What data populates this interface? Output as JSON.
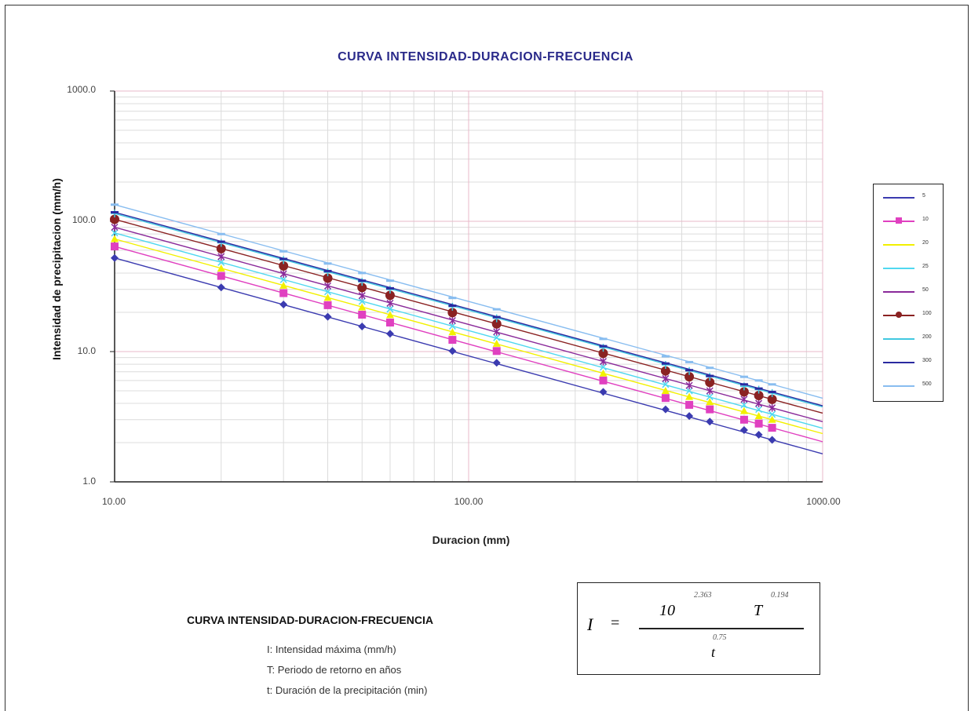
{
  "page": {
    "formula_section_title": "CURVA INTENSIDAD-DURACION-FRECUENCIA",
    "notes": [
      "I: Intensidad máxima (mm/h)",
      "T: Periodo de retorno en años",
      "t: Duración de la precipitación (min)"
    ],
    "formula": {
      "lhs": "I",
      "equals": "=",
      "base": "10",
      "base_exponent": "2.363",
      "t_var": "T",
      "t_exponent": "0.194",
      "denominator": "t",
      "denominator_exponent": "0.75"
    }
  },
  "chart_data": {
    "type": "line",
    "title": "CURVA INTENSIDAD-DURACION-FRECUENCIA",
    "xlabel": "Duracion (mm)",
    "ylabel": "Intensidad de precipitacion (mm/h)",
    "x_scale": "log",
    "y_scale": "log",
    "xlim": [
      10,
      1000
    ],
    "ylim": [
      1,
      1000
    ],
    "x_tick_labels": [
      "10.00",
      "100.00",
      "1000.00"
    ],
    "y_tick_labels": [
      "1.0",
      "10.0",
      "100.0",
      "1000.0"
    ],
    "grid": true,
    "legend_position": "right",
    "x": [
      10,
      20,
      30,
      40,
      50,
      60,
      90,
      120,
      240,
      360,
      420,
      480,
      600,
      660,
      720
    ],
    "series": [
      {
        "name": "5",
        "color": "#3b3bb0",
        "marker": "diamond",
        "values": [
          52.3,
          31.1,
          23.0,
          18.5,
          15.6,
          13.7,
          10.1,
          8.2,
          4.9,
          3.6,
          3.2,
          2.9,
          2.5,
          2.3,
          2.1
        ]
      },
      {
        "name": "10",
        "color": "#e040c0",
        "marker": "square",
        "values": [
          64.1,
          38.1,
          28.1,
          22.7,
          19.2,
          16.7,
          12.3,
          10.1,
          6.0,
          4.4,
          3.9,
          3.6,
          3.0,
          2.8,
          2.6
        ]
      },
      {
        "name": "20",
        "color": "#f2f000",
        "marker": "triangle",
        "values": [
          73.2,
          43.5,
          32.1,
          25.9,
          21.9,
          19.1,
          14.1,
          11.5,
          6.8,
          5.0,
          4.5,
          4.1,
          3.5,
          3.2,
          3.0
        ]
      },
      {
        "name": "25",
        "color": "#50d8f0",
        "marker": "x",
        "values": [
          81.4,
          48.4,
          35.7,
          28.8,
          24.3,
          21.2,
          15.7,
          12.8,
          7.6,
          5.6,
          5.0,
          4.5,
          3.9,
          3.6,
          3.3
        ]
      },
      {
        "name": "50",
        "color": "#8a2a9a",
        "marker": "star",
        "values": [
          90.1,
          53.6,
          39.5,
          31.9,
          26.9,
          23.5,
          17.3,
          14.2,
          8.4,
          6.2,
          5.5,
          5.0,
          4.3,
          4.0,
          3.7
        ]
      },
      {
        "name": "100",
        "color": "#8a2222",
        "marker": "circle",
        "values": [
          103.6,
          61.6,
          45.4,
          36.6,
          31.0,
          27.0,
          19.9,
          16.3,
          9.7,
          7.1,
          6.4,
          5.8,
          4.9,
          4.6,
          4.3
        ]
      },
      {
        "name": "200",
        "color": "#40c8e0",
        "marker": "plus",
        "values": [
          114.8,
          68.3,
          50.4,
          40.6,
          34.3,
          29.9,
          22.1,
          18.0,
          10.7,
          7.9,
          7.1,
          6.4,
          5.4,
          5.1,
          4.8
        ]
      },
      {
        "name": "300",
        "color": "#2a2aa0",
        "marker": "dash",
        "values": [
          117.3,
          69.7,
          51.4,
          41.5,
          35.0,
          30.6,
          22.5,
          18.4,
          11.0,
          8.1,
          7.2,
          6.5,
          5.6,
          5.2,
          4.9
        ]
      },
      {
        "name": "500",
        "color": "#88bdf0",
        "marker": "dash",
        "values": [
          134.2,
          79.8,
          58.8,
          47.4,
          40.1,
          35.0,
          25.8,
          21.1,
          12.5,
          9.2,
          8.3,
          7.5,
          6.4,
          6.0,
          5.6
        ]
      }
    ]
  }
}
